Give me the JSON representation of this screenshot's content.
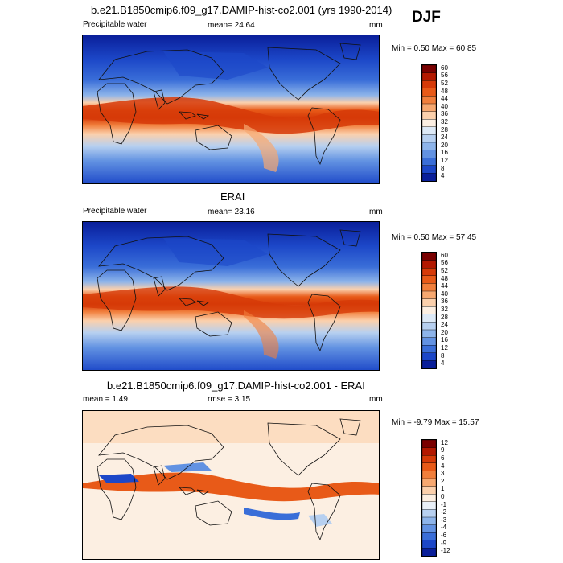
{
  "season": "DJF",
  "panels": [
    {
      "title": "b.e21.B1850cmip6.f09_g17.DAMIP-hist-co2.001 (yrs 1990-2014)",
      "left_label": "Precipitable water",
      "center_label": "mean=  24.64",
      "right_label": "mm",
      "minmax": "Min =   0.50 Max =  60.85",
      "scale": "abs",
      "cbar_labels": [
        "60",
        "56",
        "52",
        "48",
        "44",
        "40",
        "36",
        "32",
        "28",
        "24",
        "20",
        "16",
        "12",
        "8",
        "4"
      ]
    },
    {
      "title": "ERAI",
      "left_label": "Precipitable water",
      "center_label": "mean=  23.16",
      "right_label": "mm",
      "minmax": "Min =   0.50 Max =  57.45",
      "scale": "abs",
      "cbar_labels": [
        "60",
        "56",
        "52",
        "48",
        "44",
        "40",
        "36",
        "32",
        "28",
        "24",
        "20",
        "16",
        "12",
        "8",
        "4"
      ]
    },
    {
      "title": "b.e21.B1850cmip6.f09_g17.DAMIP-hist-co2.001 - ERAI",
      "left_label": "mean =   1.49",
      "center_label": "rmse =   3.15",
      "right_label": "mm",
      "minmax": "Min =  -9.79 Max =  15.57",
      "scale": "diff",
      "cbar_labels": [
        "12",
        "9",
        "6",
        "4",
        "3",
        "2",
        "1",
        "0",
        "-1",
        "-2",
        "-3",
        "-4",
        "-6",
        "-9",
        "-12"
      ]
    }
  ],
  "colors": {
    "abs": [
      "#7a0000",
      "#b31800",
      "#d63a08",
      "#e85a18",
      "#f17f3c",
      "#f7a870",
      "#fbd0ac",
      "#fcefe2",
      "#dde9f6",
      "#b7d0f0",
      "#8db4ea",
      "#6292e2",
      "#3a6ed8",
      "#1c47c8",
      "#0a1f9a"
    ],
    "diff": [
      "#7a0000",
      "#b31800",
      "#d63a08",
      "#e85a18",
      "#f17f3c",
      "#f7a870",
      "#fbd0ac",
      "#fcefe2",
      "#e9f0f8",
      "#b7d0f0",
      "#8db4ea",
      "#6292e2",
      "#3a6ed8",
      "#1c47c8",
      "#0a1f9a"
    ]
  }
}
